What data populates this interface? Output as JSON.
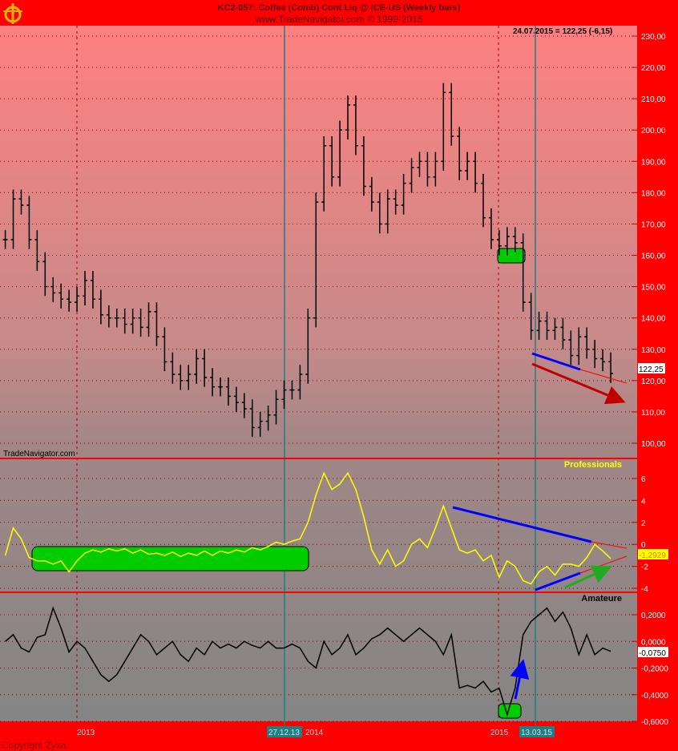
{
  "header": {
    "title": "KC2-057:  Coffee (Comb) Cont Liq @ ICE-US  (Weekly bars)",
    "subtitle": "www.TradeNavigator.com © 1999-2015",
    "last_quote": "24.07.2015 = 122,25 (-6,15)",
    "logo_icon": "sextant-logo"
  },
  "footer": {
    "copyright": "Copyright Zyxa"
  },
  "watermark": "TradeNavigator.com",
  "colors": {
    "frame": "#ff0000",
    "top_bg": "#ff8080",
    "bottom_bg": "#888888",
    "professionals": "#ffff00",
    "amateure": "#000000",
    "marker": "#1e7f86",
    "trend_blue": "#0000ff",
    "arrow_red": "#c00000",
    "arrow_green": "#22aa22",
    "box_green": "#00cc00"
  },
  "chart_data": [
    {
      "type": "bar",
      "name_label": "",
      "bar_interval": "weekly (sampled every 2 weeks)",
      "period_end": "2015-07-24",
      "ylim": [
        100,
        230
      ],
      "yticks": [
        "230,00",
        "220,00",
        "210,00",
        "200,00",
        "190,00",
        "180,00",
        "170,00",
        "160,00",
        "150,00",
        "140,00",
        "130,00",
        "120,00",
        "110,00",
        "100,00"
      ],
      "last_value_label": "122,25",
      "close": [
        165,
        178,
        176,
        165,
        158,
        150,
        148,
        146,
        145,
        147,
        152,
        146,
        141,
        140,
        140,
        138,
        140,
        137,
        142,
        134,
        126,
        122,
        120,
        122,
        127,
        121,
        118,
        118,
        115,
        113,
        111,
        105,
        107,
        109,
        114,
        117,
        117,
        122,
        140,
        177,
        195,
        185,
        200,
        208,
        195,
        182,
        177,
        170,
        178,
        176,
        183,
        188,
        190,
        185,
        190,
        212,
        198,
        187,
        190,
        183,
        172,
        165,
        163,
        166,
        164,
        145,
        136,
        139,
        136,
        137,
        133,
        128,
        134,
        130,
        127,
        126,
        122.25
      ],
      "grid": true
    },
    {
      "type": "line",
      "series_label": "Professionals",
      "ylim": [
        -4.5,
        8
      ],
      "yticks": [
        "6",
        "4",
        "2",
        "0",
        "-2",
        "-4"
      ],
      "last_value_label": "-1,2929",
      "values": [
        -1,
        1.5,
        0.5,
        -1.2,
        -1.5,
        -1.5,
        -1.8,
        -1.5,
        -2.5,
        -1.5,
        -0.8,
        -0.5,
        -0.7,
        -0.4,
        -0.6,
        -0.4,
        -0.8,
        -0.5,
        -0.9,
        -0.8,
        -1,
        -0.7,
        -1.1,
        -0.8,
        -1,
        -0.6,
        -1,
        -0.6,
        -0.8,
        -0.5,
        -0.7,
        -0.3,
        -0.5,
        -0.2,
        0.2,
        0,
        0.3,
        0.5,
        2,
        4.5,
        6.5,
        5,
        5.5,
        6.5,
        5,
        2.5,
        -0.5,
        -1.8,
        -0.5,
        -2,
        -1.5,
        0,
        0.5,
        -0.3,
        1.5,
        3.5,
        1.5,
        -0.5,
        -0.8,
        -0.5,
        -1.5,
        -1,
        -3,
        -1.5,
        -2,
        -3.3,
        -3.6,
        -2.5,
        -2,
        -2.8,
        -1.8,
        -1.8,
        -2,
        -1.2,
        0,
        -0.6,
        -1.2929
      ]
    },
    {
      "type": "line",
      "series_label": "Amateure",
      "ylim": [
        -0.6,
        0.2
      ],
      "yticks": [
        "0,2000",
        "0,0000",
        "-0,2000",
        "-0,4000",
        "-0,6000"
      ],
      "last_value_label": "-0,0750",
      "values": [
        0,
        0.05,
        -0.05,
        -0.08,
        0.03,
        0.05,
        0.25,
        0.1,
        -0.08,
        0,
        -0.05,
        -0.15,
        -0.25,
        -0.3,
        -0.25,
        -0.15,
        -0.05,
        0.05,
        0,
        -0.1,
        -0.05,
        0,
        -0.1,
        -0.15,
        -0.05,
        -0.1,
        0,
        -0.05,
        -0.02,
        -0.05,
        0,
        -0.03,
        -0.05,
        0,
        -0.05,
        -0.05,
        -0.02,
        -0.05,
        -0.15,
        -0.2,
        0,
        -0.1,
        -0.05,
        0.05,
        -0.1,
        -0.05,
        0.02,
        0.05,
        0.1,
        0.05,
        0,
        0.05,
        0.1,
        0.05,
        0,
        -0.1,
        0.05,
        -0.35,
        -0.33,
        -0.35,
        -0.3,
        -0.38,
        -0.35,
        -0.55,
        -0.35,
        0.05,
        0.15,
        0.2,
        0.25,
        0.15,
        0.22,
        0.1,
        -0.1,
        0.05,
        -0.1,
        -0.05,
        -0.075
      ]
    }
  ],
  "xaxis": {
    "labels": [
      "2013",
      "2015"
    ],
    "hidden_label": "2014",
    "markers": [
      "27.12.13",
      "13.03.15"
    ]
  }
}
